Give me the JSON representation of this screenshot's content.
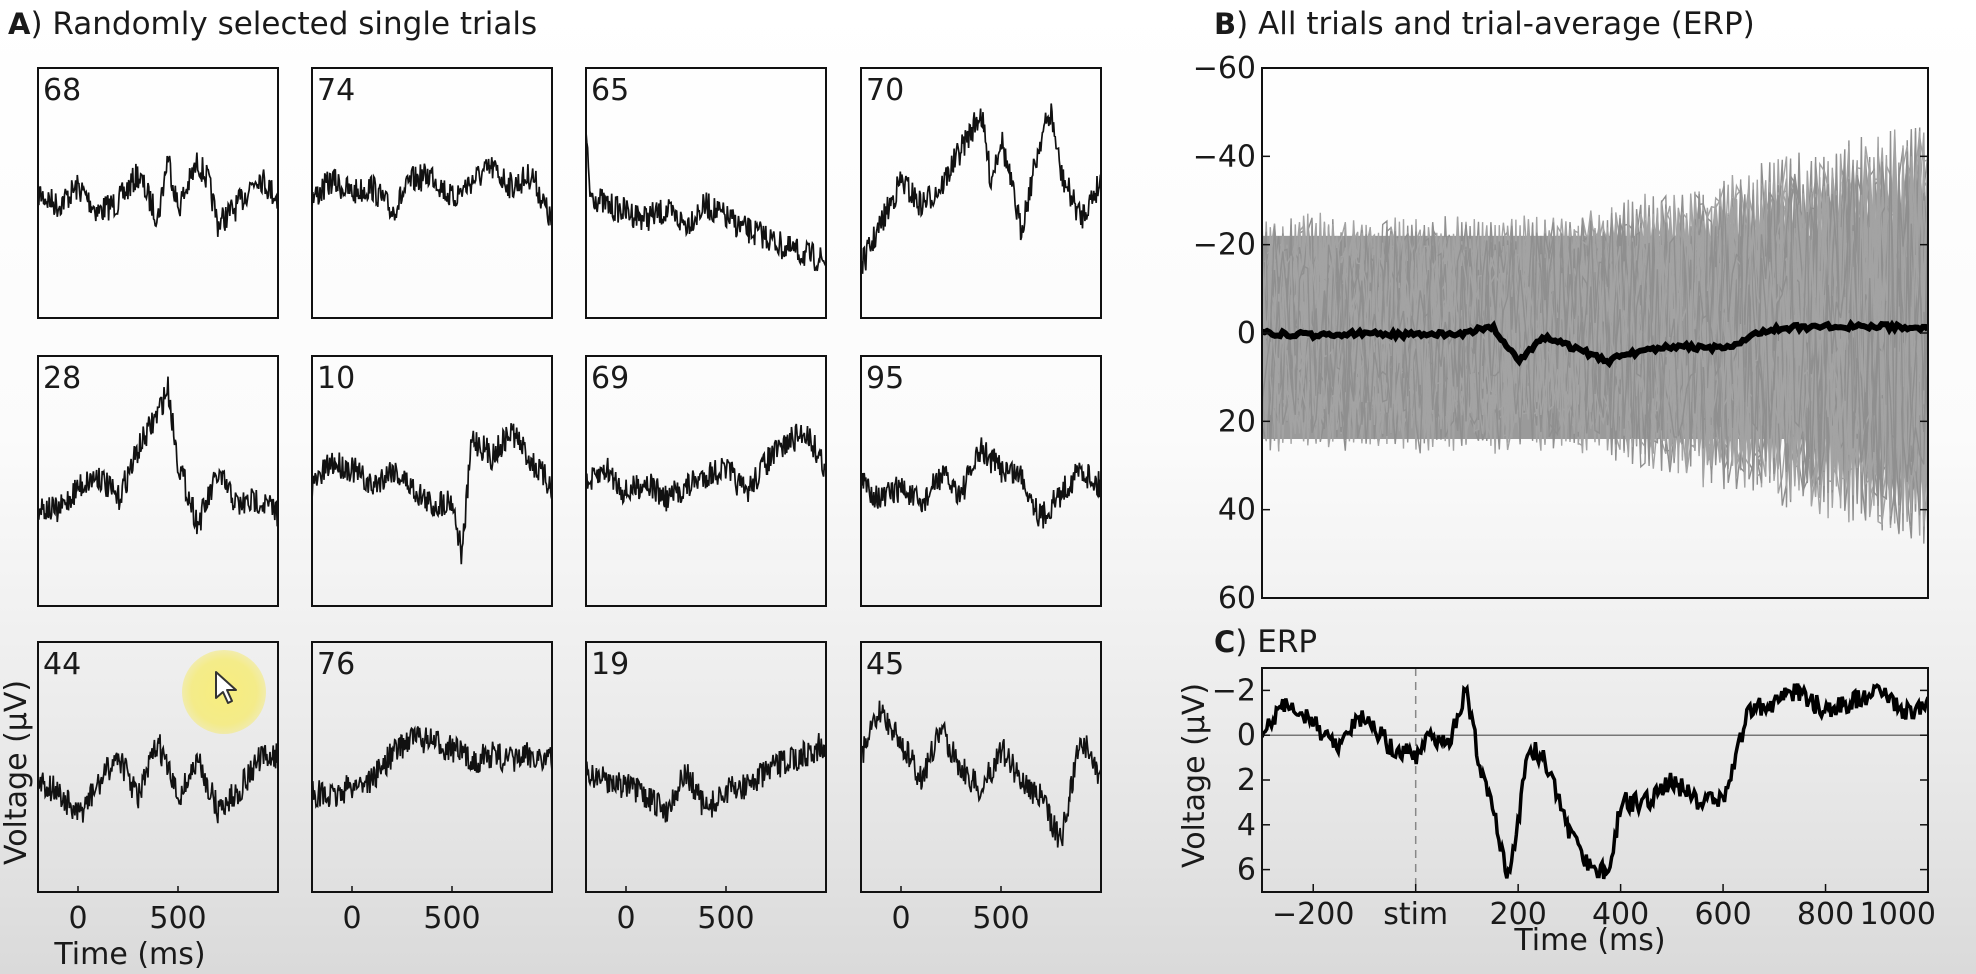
{
  "chart_data": [
    {
      "type": "line",
      "panel_letter": "A",
      "title": "Randomly selected single trials",
      "xlabel": "Time (ms)",
      "ylabel": "Voltage (µV)",
      "x_ticks": [
        0,
        500
      ],
      "x_range": [
        -200,
        1000
      ],
      "trials": [
        {
          "label": "68",
          "x": [
            -200,
            -100,
            0,
            100,
            200,
            300,
            400,
            450,
            500,
            600,
            650,
            700,
            800,
            900,
            1000
          ],
          "y": [
            0,
            4,
            -2,
            6,
            3,
            -6,
            8,
            -12,
            5,
            -10,
            -4,
            10,
            4,
            -6,
            2
          ]
        },
        {
          "label": "74",
          "x": [
            -200,
            -100,
            0,
            100,
            200,
            300,
            400,
            500,
            600,
            700,
            800,
            900,
            1000
          ],
          "y": [
            2,
            -4,
            0,
            -2,
            6,
            -4,
            -6,
            2,
            -4,
            -8,
            -2,
            -6,
            10
          ]
        },
        {
          "label": "65",
          "x": [
            -200,
            -180,
            -100,
            0,
            100,
            200,
            300,
            400,
            500,
            600,
            700,
            800,
            900,
            1000
          ],
          "y": [
            -18,
            0,
            4,
            6,
            8,
            6,
            10,
            4,
            8,
            12,
            14,
            18,
            20,
            22
          ]
        },
        {
          "label": "70",
          "x": [
            -200,
            -100,
            0,
            100,
            200,
            300,
            400,
            450,
            500,
            600,
            700,
            750,
            800,
            900,
            1000
          ],
          "y": [
            24,
            10,
            -4,
            4,
            -2,
            -14,
            -26,
            -4,
            -18,
            12,
            -18,
            -26,
            -6,
            8,
            -4
          ]
        },
        {
          "label": "28",
          "x": [
            -200,
            -100,
            0,
            100,
            200,
            300,
            400,
            450,
            500,
            600,
            700,
            800,
            900,
            1000
          ],
          "y": [
            8,
            10,
            2,
            -2,
            6,
            -10,
            -22,
            -30,
            -6,
            14,
            -2,
            8,
            6,
            10
          ]
        },
        {
          "label": "10",
          "x": [
            -200,
            -100,
            0,
            100,
            200,
            300,
            400,
            500,
            550,
            600,
            700,
            800,
            900,
            1000
          ],
          "y": [
            2,
            -6,
            -4,
            2,
            -4,
            2,
            8,
            6,
            24,
            -14,
            -8,
            -16,
            -6,
            2
          ]
        },
        {
          "label": "69",
          "x": [
            -200,
            -100,
            0,
            100,
            200,
            300,
            400,
            500,
            600,
            700,
            800,
            900,
            1000
          ],
          "y": [
            2,
            -4,
            4,
            0,
            6,
            2,
            -2,
            -4,
            4,
            -6,
            -12,
            -16,
            -4
          ]
        },
        {
          "label": "95",
          "x": [
            -200,
            -100,
            0,
            100,
            200,
            300,
            400,
            500,
            600,
            700,
            800,
            900,
            1000
          ],
          "y": [
            0,
            6,
            2,
            8,
            -2,
            4,
            -10,
            -4,
            -2,
            12,
            4,
            -4,
            2
          ]
        },
        {
          "label": "44",
          "x": [
            -200,
            -100,
            0,
            100,
            200,
            300,
            400,
            500,
            600,
            700,
            800,
            900,
            1000
          ],
          "y": [
            4,
            8,
            16,
            6,
            -4,
            10,
            -8,
            10,
            -2,
            14,
            8,
            -2,
            -4
          ]
        },
        {
          "label": "76",
          "x": [
            -200,
            -100,
            0,
            100,
            200,
            300,
            400,
            500,
            600,
            700,
            800,
            900,
            1000
          ],
          "y": [
            8,
            10,
            6,
            4,
            -4,
            -10,
            -8,
            -6,
            -2,
            -4,
            -2,
            -4,
            -2
          ]
        },
        {
          "label": "19",
          "x": [
            -200,
            -100,
            0,
            100,
            200,
            300,
            400,
            500,
            600,
            700,
            800,
            900,
            1000
          ],
          "y": [
            2,
            4,
            6,
            10,
            14,
            2,
            14,
            8,
            6,
            2,
            -2,
            -4,
            -8
          ]
        },
        {
          "label": "45",
          "x": [
            -200,
            -100,
            0,
            100,
            200,
            300,
            400,
            500,
            600,
            700,
            800,
            900,
            1000
          ],
          "y": [
            -4,
            -18,
            -8,
            4,
            -12,
            0,
            8,
            -6,
            4,
            10,
            24,
            -10,
            4
          ]
        }
      ]
    },
    {
      "type": "line",
      "panel_letter": "B",
      "title": "All trials and trial-average (ERP)",
      "y_ticks": [
        -60,
        -40,
        -20,
        0,
        20,
        40,
        60
      ],
      "ylim": [
        -60,
        60
      ],
      "x_range": [
        -300,
        1000
      ],
      "trial_band_color": "#9a9a9a",
      "erp_color": "#000000",
      "erp": {
        "x": [
          -300,
          -200,
          -100,
          0,
          100,
          150,
          200,
          250,
          300,
          380,
          400,
          500,
          600,
          650,
          700,
          800,
          900,
          1000
        ],
        "y": [
          0,
          0.5,
          0,
          0.5,
          0,
          -1.5,
          6.5,
          1,
          3,
          6.5,
          5,
          3,
          3.5,
          1,
          -1,
          -1.5,
          -1.5,
          -1
        ]
      }
    },
    {
      "type": "line",
      "panel_letter": "C",
      "title": "ERP",
      "xlabel": "Time (ms)",
      "ylabel": "Voltage (µV)",
      "x_tick_labels": [
        "−200",
        "stim",
        "200",
        "400",
        "600",
        "800",
        "1000"
      ],
      "x_ticks": [
        -200,
        0,
        200,
        400,
        600,
        800,
        1000
      ],
      "y_ticks": [
        -2,
        0,
        2,
        4,
        6
      ],
      "y_tick_labels": [
        "−2",
        "0",
        "2",
        "4",
        "6"
      ],
      "ylim": [
        -3,
        7
      ],
      "x_range": [
        -300,
        1000
      ],
      "x": [
        -300,
        -250,
        -200,
        -150,
        -100,
        -50,
        0,
        30,
        60,
        100,
        130,
        150,
        180,
        200,
        220,
        250,
        280,
        300,
        330,
        360,
        380,
        400,
        450,
        500,
        550,
        600,
        650,
        700,
        750,
        800,
        850,
        900,
        950,
        1000
      ],
      "y": [
        0,
        -1.5,
        -0.5,
        0.5,
        -1,
        0.5,
        1,
        0,
        0.5,
        -2,
        2,
        3,
        6.5,
        4,
        0.5,
        1,
        3,
        4.5,
        5.5,
        6,
        6,
        3,
        3,
        2,
        3,
        3,
        -1,
        -1.5,
        -2,
        -1,
        -1.5,
        -2,
        -1,
        -1.5
      ]
    }
  ]
}
